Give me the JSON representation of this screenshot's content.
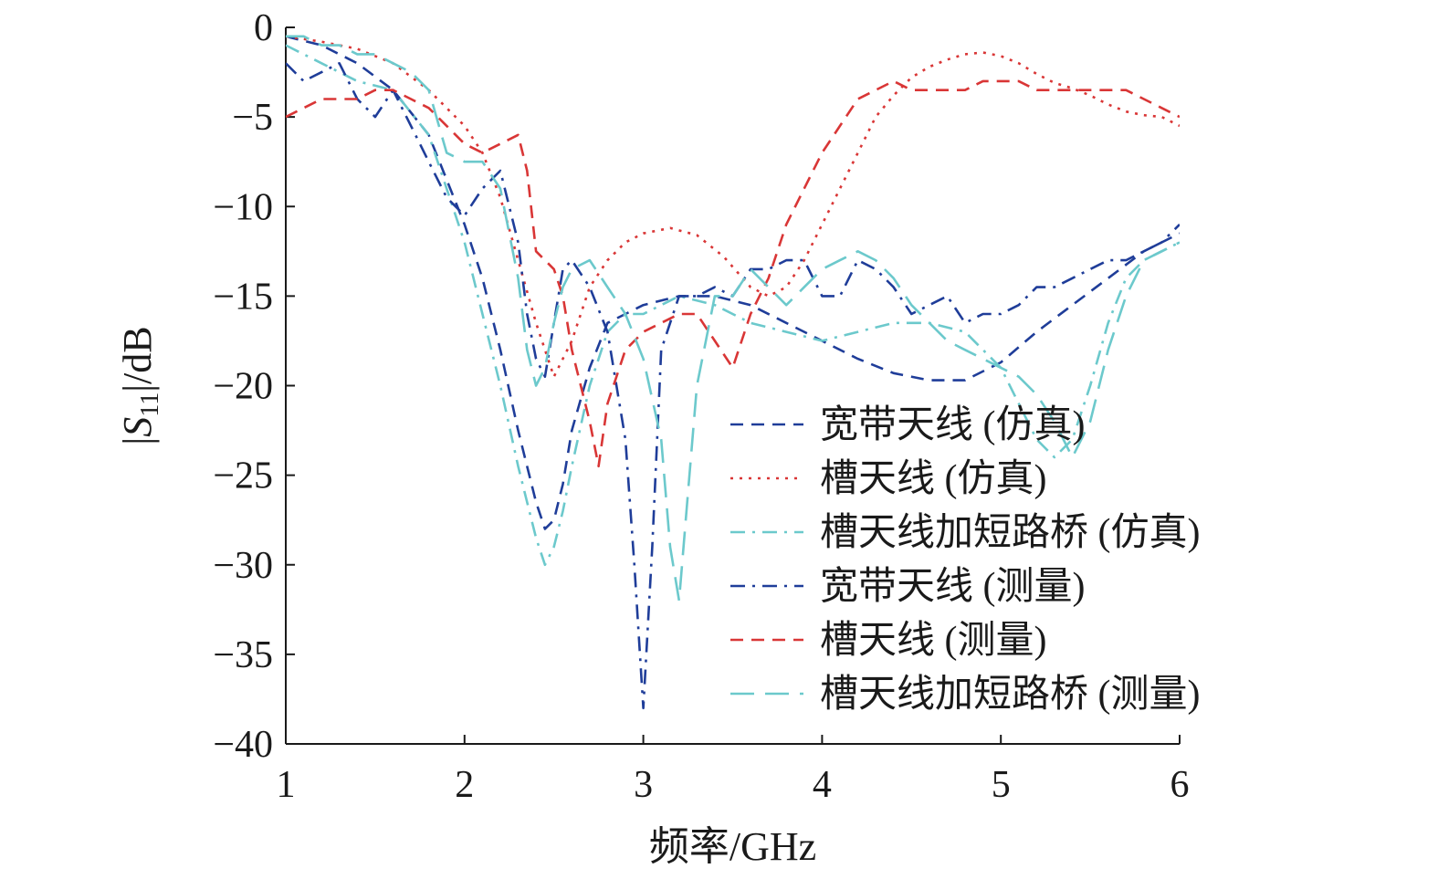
{
  "chart_data": {
    "type": "line",
    "xlabel": "频率/GHz",
    "ylabel": "|S11|/dB",
    "xlim": [
      1,
      6
    ],
    "ylim": [
      -40,
      0
    ],
    "xticks": [
      1,
      2,
      3,
      4,
      5,
      6
    ],
    "yticks": [
      0,
      -5,
      -10,
      -15,
      -20,
      -25,
      -30,
      -35,
      -40
    ],
    "grid": false,
    "legend_position": "right-center",
    "series": [
      {
        "name": "宽带天线 (仿真)",
        "color": "#1f3d99",
        "dash": "dashed",
        "x": [
          1.0,
          1.2,
          1.4,
          1.6,
          1.8,
          2.0,
          2.1,
          2.2,
          2.3,
          2.4,
          2.45,
          2.5,
          2.55,
          2.6,
          2.7,
          2.8,
          3.0,
          3.2,
          3.4,
          3.6,
          3.8,
          4.0,
          4.2,
          4.4,
          4.6,
          4.8,
          5.0,
          5.2,
          5.4,
          5.6,
          5.8,
          6.0
        ],
        "y": [
          -0.5,
          -1.0,
          -2.0,
          -3.5,
          -6.0,
          -11.0,
          -14.0,
          -18.0,
          -22.5,
          -26.5,
          -28.0,
          -27.5,
          -25.5,
          -22.5,
          -19.0,
          -16.5,
          -15.5,
          -15.0,
          -15.0,
          -15.5,
          -16.5,
          -17.5,
          -18.5,
          -19.3,
          -19.7,
          -19.7,
          -18.7,
          -17.0,
          -15.5,
          -14.0,
          -12.5,
          -11.5
        ]
      },
      {
        "name": "槽天线 (仿真)",
        "color": "#d93636",
        "dash": "dotted",
        "x": [
          1.0,
          1.2,
          1.4,
          1.6,
          1.8,
          2.0,
          2.1,
          2.2,
          2.3,
          2.4,
          2.5,
          2.6,
          2.7,
          2.8,
          2.9,
          3.0,
          3.15,
          3.3,
          3.45,
          3.6,
          3.7,
          3.8,
          3.9,
          4.0,
          4.1,
          4.2,
          4.3,
          4.4,
          4.5,
          4.6,
          4.7,
          4.8,
          4.9,
          5.0,
          5.1,
          5.2,
          5.3,
          5.4,
          5.5,
          5.6,
          5.7,
          5.8,
          5.9,
          6.0
        ],
        "y": [
          -0.5,
          -0.8,
          -1.2,
          -2.0,
          -3.5,
          -5.5,
          -7.0,
          -9.5,
          -13.0,
          -16.5,
          -19.5,
          -17.5,
          -14.5,
          -13.0,
          -12.0,
          -11.5,
          -11.2,
          -11.6,
          -12.8,
          -14.5,
          -15.0,
          -14.5,
          -13.0,
          -11.0,
          -9.0,
          -7.0,
          -5.0,
          -3.8,
          -2.8,
          -2.2,
          -1.8,
          -1.5,
          -1.4,
          -1.6,
          -2.0,
          -2.6,
          -3.1,
          -3.4,
          -3.8,
          -4.3,
          -4.7,
          -4.9,
          -5.0,
          -5.5
        ]
      },
      {
        "name": "槽天线加短路桥 (仿真)",
        "color": "#6cc9cc",
        "dash": "dashdot",
        "x": [
          1.0,
          1.2,
          1.4,
          1.6,
          1.8,
          2.0,
          2.1,
          2.2,
          2.3,
          2.4,
          2.45,
          2.5,
          2.55,
          2.6,
          2.7,
          2.8,
          2.9,
          3.0,
          3.1,
          3.2,
          3.4,
          3.6,
          3.8,
          4.0,
          4.2,
          4.4,
          4.6,
          4.8,
          5.0,
          5.1,
          5.2,
          5.3,
          5.4,
          5.5,
          5.6,
          5.7,
          5.8,
          6.0
        ],
        "y": [
          -1.0,
          -2.0,
          -3.0,
          -3.5,
          -6.0,
          -12.0,
          -16.0,
          -20.0,
          -24.5,
          -28.5,
          -30.0,
          -29.0,
          -27.0,
          -24.5,
          -20.0,
          -17.0,
          -16.0,
          -16.0,
          -15.5,
          -15.0,
          -15.5,
          -16.5,
          -17.0,
          -17.5,
          -17.0,
          -16.5,
          -16.5,
          -17.0,
          -19.0,
          -21.0,
          -23.0,
          -24.0,
          -23.0,
          -20.0,
          -16.5,
          -14.0,
          -13.0,
          -12.0
        ]
      },
      {
        "name": "宽带天线 (测量)",
        "color": "#1f3d99",
        "dash": "dashdot",
        "x": [
          1.0,
          1.1,
          1.2,
          1.3,
          1.4,
          1.5,
          1.6,
          1.7,
          1.8,
          1.9,
          2.0,
          2.1,
          2.2,
          2.3,
          2.35,
          2.4,
          2.45,
          2.5,
          2.55,
          2.6,
          2.7,
          2.8,
          2.9,
          2.95,
          3.0,
          3.05,
          3.1,
          3.2,
          3.3,
          3.4,
          3.5,
          3.6,
          3.7,
          3.8,
          3.9,
          4.0,
          4.1,
          4.2,
          4.3,
          4.4,
          4.5,
          4.6,
          4.7,
          4.8,
          4.9,
          5.0,
          5.1,
          5.2,
          5.3,
          5.4,
          5.5,
          5.6,
          5.7,
          5.8,
          5.9,
          6.0
        ],
        "y": [
          -2.0,
          -3.0,
          -2.5,
          -2.0,
          -4.0,
          -5.0,
          -3.5,
          -5.5,
          -7.5,
          -9.5,
          -10.5,
          -9.0,
          -8.0,
          -12.0,
          -16.0,
          -18.5,
          -19.5,
          -16.5,
          -13.5,
          -13.0,
          -14.5,
          -17.0,
          -23.0,
          -30.0,
          -38.0,
          -29.0,
          -18.0,
          -15.0,
          -15.0,
          -14.5,
          -15.0,
          -13.5,
          -13.5,
          -13.0,
          -13.0,
          -15.0,
          -15.0,
          -13.0,
          -13.5,
          -14.5,
          -16.0,
          -15.5,
          -15.0,
          -16.5,
          -16.0,
          -16.0,
          -15.5,
          -14.5,
          -14.5,
          -14.0,
          -13.5,
          -13.0,
          -13.0,
          -12.5,
          -12.0,
          -11.0
        ]
      },
      {
        "name": "槽天线 (测量)",
        "color": "#d93636",
        "dash": "dashed",
        "x": [
          1.0,
          1.1,
          1.2,
          1.3,
          1.4,
          1.5,
          1.6,
          1.7,
          1.8,
          1.9,
          2.0,
          2.1,
          2.2,
          2.3,
          2.35,
          2.4,
          2.45,
          2.5,
          2.55,
          2.6,
          2.65,
          2.7,
          2.75,
          2.8,
          2.9,
          3.0,
          3.1,
          3.2,
          3.3,
          3.4,
          3.5,
          3.6,
          3.7,
          3.8,
          3.9,
          4.0,
          4.1,
          4.2,
          4.3,
          4.4,
          4.5,
          4.6,
          4.7,
          4.8,
          4.9,
          5.0,
          5.1,
          5.2,
          5.3,
          5.4,
          5.5,
          5.6,
          5.7,
          5.8,
          5.9,
          6.0
        ],
        "y": [
          -5.0,
          -4.5,
          -4.0,
          -4.0,
          -4.0,
          -3.5,
          -3.5,
          -4.0,
          -4.5,
          -5.5,
          -6.5,
          -7.0,
          -6.5,
          -6.0,
          -8.0,
          -12.5,
          -13.0,
          -13.5,
          -15.0,
          -18.0,
          -20.0,
          -22.0,
          -24.5,
          -21.0,
          -18.0,
          -17.0,
          -16.5,
          -16.0,
          -16.0,
          -17.5,
          -19.0,
          -16.0,
          -14.0,
          -11.0,
          -9.0,
          -7.0,
          -5.5,
          -4.0,
          -3.5,
          -3.0,
          -3.5,
          -3.5,
          -3.5,
          -3.5,
          -3.0,
          -3.0,
          -3.0,
          -3.5,
          -3.5,
          -3.5,
          -3.5,
          -3.5,
          -3.5,
          -4.0,
          -4.5,
          -5.0
        ]
      },
      {
        "name": "槽天线加短路桥 (测量)",
        "color": "#6cc9cc",
        "dash": "longdash",
        "x": [
          1.0,
          1.1,
          1.2,
          1.3,
          1.4,
          1.5,
          1.6,
          1.7,
          1.8,
          1.9,
          2.0,
          2.1,
          2.2,
          2.3,
          2.35,
          2.4,
          2.45,
          2.5,
          2.55,
          2.6,
          2.7,
          2.8,
          2.9,
          3.0,
          3.1,
          3.15,
          3.2,
          3.25,
          3.3,
          3.4,
          3.5,
          3.6,
          3.7,
          3.8,
          3.9,
          4.0,
          4.1,
          4.2,
          4.3,
          4.4,
          4.5,
          4.6,
          4.7,
          4.8,
          4.9,
          5.0,
          5.1,
          5.2,
          5.3,
          5.4,
          5.5,
          5.6,
          5.7,
          5.8,
          5.9,
          6.0
        ],
        "y": [
          -0.5,
          -0.5,
          -1.0,
          -1.0,
          -1.5,
          -1.5,
          -2.0,
          -2.5,
          -3.5,
          -7.0,
          -7.5,
          -7.5,
          -9.0,
          -14.0,
          -18.0,
          -20.0,
          -19.0,
          -16.5,
          -14.5,
          -13.5,
          -13.0,
          -14.5,
          -16.0,
          -18.5,
          -23.0,
          -29.0,
          -32.0,
          -26.0,
          -20.0,
          -15.0,
          -15.0,
          -13.5,
          -14.5,
          -15.5,
          -14.5,
          -13.5,
          -13.0,
          -12.5,
          -13.0,
          -14.0,
          -15.5,
          -16.5,
          -17.5,
          -18.0,
          -18.5,
          -19.0,
          -19.5,
          -20.5,
          -22.0,
          -24.0,
          -22.0,
          -18.0,
          -15.0,
          -13.0,
          -12.5,
          -12.0
        ]
      }
    ]
  }
}
